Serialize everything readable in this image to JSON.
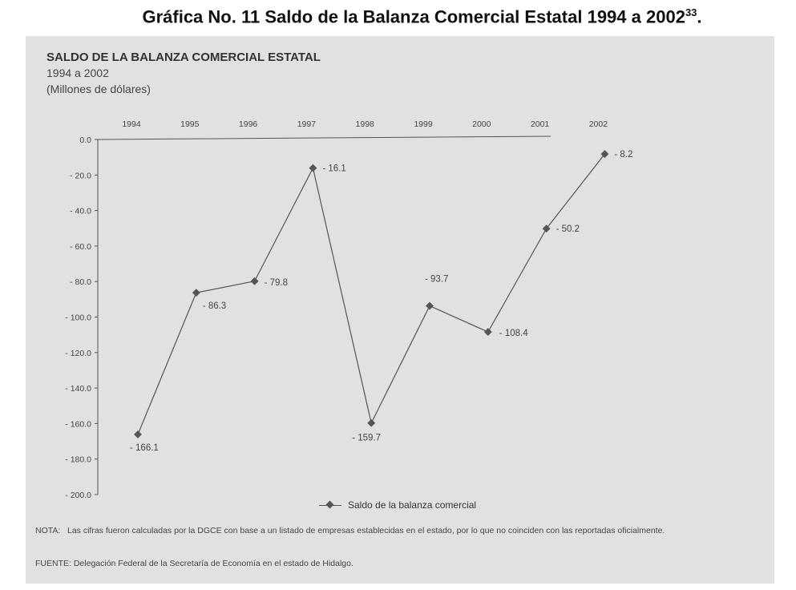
{
  "heading": {
    "text": "Gráfica No. 11 Saldo de la Balanza Comercial Estatal 1994 a 2002",
    "footnote_ref": "33",
    "tail": "."
  },
  "panel": {
    "title": "SALDO DE LA BALANZA COMERCIAL ESTATAL",
    "subtitle_years": "1994 a 2002",
    "subtitle_units": "(Millones de dólares)",
    "background": "#e3e1df"
  },
  "chart_data": {
    "type": "line",
    "categories": [
      "1994",
      "1995",
      "1996",
      "1997",
      "1998",
      "1999",
      "2000",
      "2001",
      "2002"
    ],
    "series": [
      {
        "name": "Saldo de la balanza comercial",
        "values": [
          -166.1,
          -86.3,
          -79.8,
          -16.1,
          -159.7,
          -93.7,
          -108.4,
          -50.2,
          -8.2
        ],
        "labels": [
          "- 166.1",
          "- 86.3",
          "- 79.8",
          "- 16.1",
          "- 159.7",
          "- 93.7",
          "- 108.4",
          "- 50.2",
          "- 8.2"
        ],
        "color": "#555555",
        "marker": "diamond"
      }
    ],
    "x_axis_position": "top",
    "ylim": [
      -200,
      0
    ],
    "yticks": [
      0,
      -20,
      -40,
      -60,
      -80,
      -100,
      -120,
      -140,
      -160,
      -180,
      -200
    ],
    "ytick_labels": [
      "0.0",
      "- 20.0",
      "- 40.0",
      "- 60.0",
      "- 80.0",
      "- 100.0",
      "- 120.0",
      "- 140.0",
      "- 160.0",
      "- 180.0",
      "- 200.0"
    ],
    "grid": false,
    "legend": "bottom-center"
  },
  "notes": {
    "nota_label": "NOTA:",
    "nota_text": "Las cifras fueron calculadas por la DGCE con base a un listado de empresas establecidas en el estado, por lo que no coinciden con las reportadas oficialmente.",
    "fuente_label": "FUENTE:",
    "fuente_text": "Delegación Federal de la Secretaría de Economía en el estado de Hidalgo."
  }
}
